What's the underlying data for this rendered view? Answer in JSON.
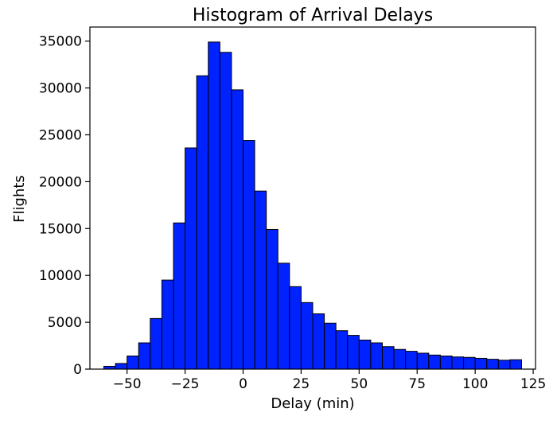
{
  "chart_data": {
    "type": "bar",
    "title": "Histogram of Arrival Delays",
    "xlabel": "Delay (min)",
    "ylabel": "Flights",
    "bar_color": "#0022ff",
    "edge_color": "#000000",
    "xlim": [
      -66,
      126
    ],
    "ylim": [
      0,
      36500
    ],
    "grid": false,
    "bin_width": 5,
    "bin_start": [
      -60,
      -55,
      -50,
      -45,
      -40,
      -35,
      -30,
      -25,
      -20,
      -15,
      -10,
      -5,
      0,
      5,
      10,
      15,
      20,
      25,
      30,
      35,
      40,
      45,
      50,
      55,
      60,
      65,
      70,
      75,
      80,
      85,
      90,
      95,
      100,
      105,
      110,
      115
    ],
    "values": [
      300,
      600,
      1400,
      2800,
      5400,
      9500,
      15600,
      23600,
      31300,
      34900,
      33800,
      29800,
      24400,
      19000,
      14900,
      11300,
      8800,
      7100,
      5900,
      4900,
      4100,
      3600,
      3100,
      2800,
      2400,
      2100,
      1900,
      1700,
      1500,
      1400,
      1300,
      1250,
      1150,
      1050,
      950,
      1000
    ],
    "x_ticks": [
      -50,
      -25,
      0,
      25,
      50,
      75,
      100,
      125
    ],
    "x_tick_labels": [
      "−50",
      "−25",
      "0",
      "25",
      "50",
      "75",
      "100",
      "125"
    ],
    "y_ticks": [
      0,
      5000,
      10000,
      15000,
      20000,
      25000,
      30000,
      35000
    ],
    "y_tick_labels": [
      "0",
      "5000",
      "10000",
      "15000",
      "20000",
      "25000",
      "30000",
      "35000"
    ]
  }
}
